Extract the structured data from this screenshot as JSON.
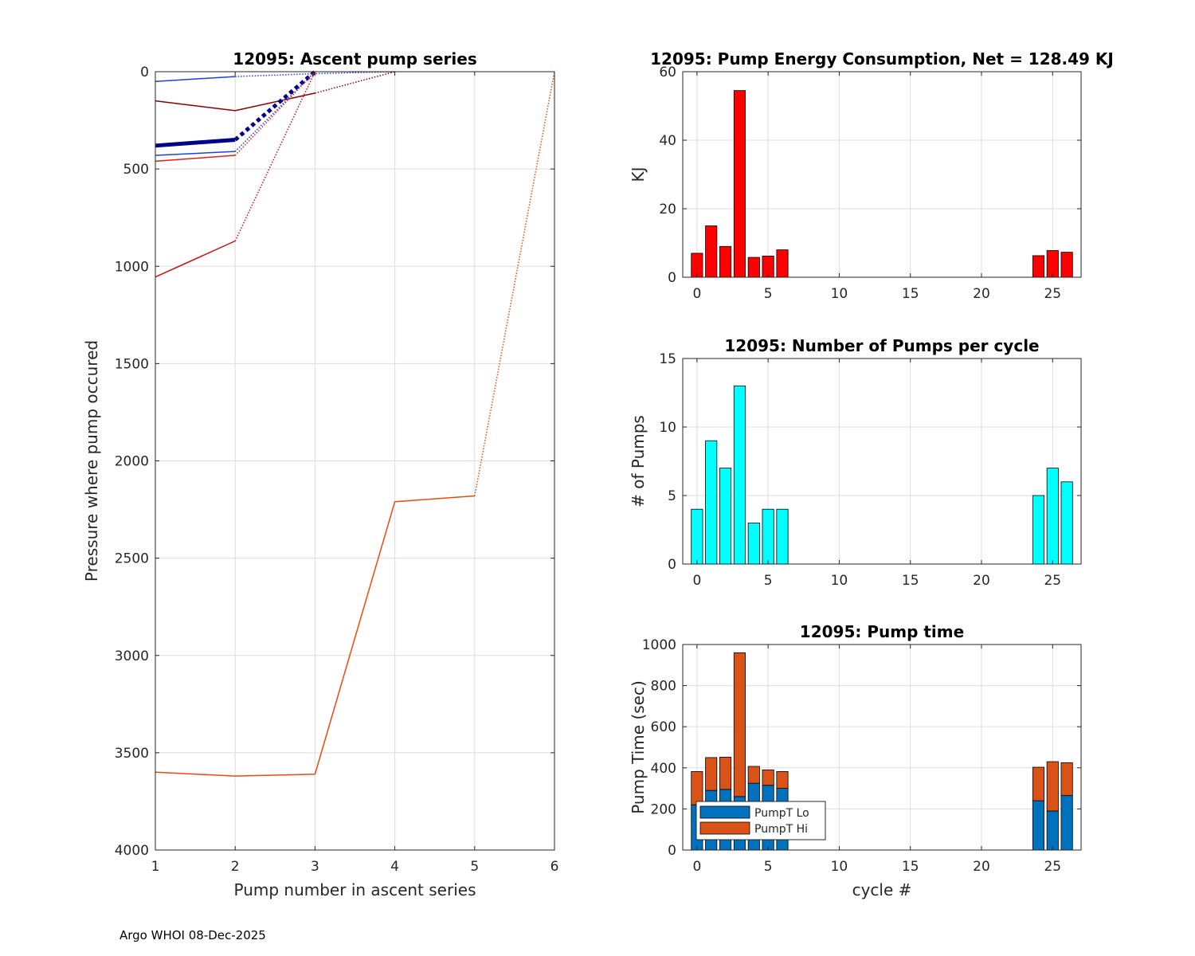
{
  "footer": "Argo WHOI 08-Dec-2025",
  "colors": {
    "energy_bar": "#ff0000",
    "pumps_bar": "#00ffff",
    "pumpt_lo": "#0072bd",
    "pumpt_hi": "#d95319",
    "grid": "#dddddd",
    "axis": "#262626"
  },
  "chart_data": [
    {
      "id": "ascent",
      "type": "line",
      "title": "12095: Ascent pump series",
      "xlabel": "Pump number in ascent series",
      "ylabel": "Pressure where pump occured",
      "xlim": [
        1,
        6
      ],
      "ylim": [
        0,
        4000
      ],
      "y_reversed": true,
      "xticks": [
        1,
        2,
        3,
        4,
        5,
        6
      ],
      "yticks": [
        0,
        500,
        1000,
        1500,
        2000,
        2500,
        3000,
        3500,
        4000
      ],
      "grid": true,
      "series": [
        {
          "name": "c0",
          "color": "#7fd13b",
          "width": 1,
          "x": [
            1,
            2,
            3
          ],
          "y": [
            0,
            0,
            0
          ],
          "dotted_from": 2
        },
        {
          "name": "c1",
          "color": "#1f3fe0",
          "width": 1.5,
          "x": [
            1,
            2,
            3,
            4
          ],
          "y": [
            50,
            25,
            10,
            0
          ],
          "dotted_from": 1
        },
        {
          "name": "c2",
          "color": "#8b0000",
          "width": 1.5,
          "x": [
            1,
            2,
            3,
            4
          ],
          "y": [
            150,
            200,
            110,
            0
          ],
          "dotted_from": 2
        },
        {
          "name": "c3",
          "color": "#00008b",
          "width": 5,
          "x": [
            1,
            2,
            3
          ],
          "y": [
            380,
            350,
            0
          ],
          "dotted_from": 1
        },
        {
          "name": "c4",
          "color": "#1f3fe0",
          "width": 1.5,
          "x": [
            1,
            2,
            3
          ],
          "y": [
            430,
            410,
            0
          ],
          "dotted_from": 1
        },
        {
          "name": "c5",
          "color": "#e02020",
          "width": 1.5,
          "x": [
            1,
            2,
            3
          ],
          "y": [
            460,
            430,
            0
          ],
          "dotted_from": 1
        },
        {
          "name": "c6",
          "color": "#cc1010",
          "width": 1.5,
          "x": [
            1,
            2,
            3
          ],
          "y": [
            1055,
            870,
            0
          ],
          "dotted_from": 1
        },
        {
          "name": "c7",
          "color": "#e84a10",
          "width": 1.5,
          "x": [
            1,
            2,
            3,
            4,
            5,
            6
          ],
          "y": [
            3600,
            3620,
            3610,
            2210,
            2180,
            0
          ],
          "dotted_from": 4
        }
      ]
    },
    {
      "id": "energy",
      "type": "bar",
      "title": "12095: Pump Energy Consumption,  Net = 128.49 KJ",
      "xlabel": "",
      "ylabel": "KJ",
      "xlim": [
        -1,
        27
      ],
      "ylim": [
        0,
        60
      ],
      "xticks": [
        0,
        5,
        10,
        15,
        20,
        25
      ],
      "yticks": [
        0,
        20,
        40,
        60
      ],
      "grid": true,
      "x": [
        0,
        1,
        2,
        3,
        4,
        5,
        6,
        24,
        25,
        26
      ],
      "values": [
        7,
        15,
        9,
        54.5,
        5.8,
        6.2,
        8,
        6.3,
        7.8,
        7.3
      ]
    },
    {
      "id": "pumps",
      "type": "bar",
      "title": "12095: Number of Pumps per cycle",
      "xlabel": "",
      "ylabel": "# of Pumps",
      "xlim": [
        -1,
        27
      ],
      "ylim": [
        0,
        15
      ],
      "xticks": [
        0,
        5,
        10,
        15,
        20,
        25
      ],
      "yticks": [
        0,
        5,
        10,
        15
      ],
      "grid": true,
      "x": [
        0,
        1,
        2,
        3,
        4,
        5,
        6,
        24,
        25,
        26
      ],
      "values": [
        4,
        9,
        7,
        13,
        3,
        4,
        4,
        5,
        7,
        6
      ]
    },
    {
      "id": "pumptime",
      "type": "bar",
      "stacked": true,
      "title": "12095: Pump time",
      "xlabel": "cycle #",
      "ylabel": "Pump Time (sec)",
      "xlim": [
        -1,
        27
      ],
      "ylim": [
        0,
        1000
      ],
      "xticks": [
        0,
        5,
        10,
        15,
        20,
        25
      ],
      "yticks": [
        0,
        200,
        400,
        600,
        800,
        1000
      ],
      "grid": true,
      "legend_position": "bottom-left",
      "x": [
        0,
        1,
        2,
        3,
        4,
        5,
        6,
        24,
        25,
        26
      ],
      "series": [
        {
          "name": "PumpT Lo",
          "values": [
            220,
            290,
            295,
            260,
            325,
            315,
            300,
            240,
            190,
            265
          ]
        },
        {
          "name": "PumpT Hi",
          "values": [
            162,
            160,
            157,
            700,
            82,
            75,
            82,
            163,
            240,
            160
          ]
        }
      ]
    }
  ]
}
